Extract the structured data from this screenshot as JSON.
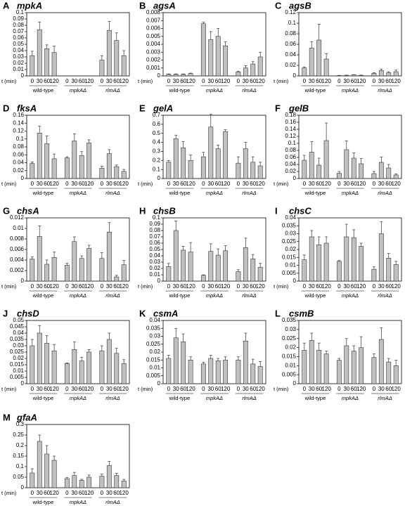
{
  "chart_data": [
    {
      "type": "bar",
      "panel": "A",
      "title": "mpkA",
      "x_label": "t (min)",
      "color": "#c0c0c0",
      "categories": [
        "0",
        "30",
        "60",
        "120",
        "0",
        "30",
        "60",
        "120",
        "0",
        "30",
        "60",
        "120"
      ],
      "groups": [
        "wild-type",
        "mpkAΔ",
        "rlmAΔ"
      ],
      "values": [
        0.032,
        0.073,
        0.043,
        0.037,
        0,
        0,
        0,
        0,
        0.025,
        0.072,
        0.056,
        0.032
      ],
      "errors": [
        0.007,
        0.012,
        0.006,
        0.01,
        0,
        0,
        0,
        0,
        0.007,
        0.014,
        0.012,
        0.008
      ],
      "ylim": [
        0,
        0.1
      ],
      "yticks": [
        0,
        0.01,
        0.02,
        0.03,
        0.04,
        0.05,
        0.06,
        0.07,
        0.08,
        0.09,
        0.1
      ]
    },
    {
      "type": "bar",
      "panel": "B",
      "title": "agsA",
      "x_label": "t (min)",
      "color": "#c0c0c0",
      "categories": [
        "0",
        "30",
        "60",
        "120",
        "0",
        "30",
        "60",
        "120",
        "0",
        "30",
        "60",
        "120"
      ],
      "groups": [
        "wild-type",
        "mpkAΔ",
        "rlmAΔ"
      ],
      "values": [
        0.0002,
        0.0002,
        0.0002,
        0.0003,
        0.0066,
        0.0046,
        0.005,
        0.0038,
        0.0005,
        0.001,
        0.0015,
        0.0024
      ],
      "errors": [
        5e-05,
        5e-05,
        5e-05,
        5e-05,
        0.0002,
        0.001,
        0.001,
        0.0005,
        0.0001,
        0.0003,
        0.0003,
        0.0006
      ],
      "ylim": [
        0,
        0.008
      ],
      "yticks": [
        0,
        0.001,
        0.002,
        0.003,
        0.004,
        0.005,
        0.006,
        0.007,
        0.008
      ]
    },
    {
      "type": "bar",
      "panel": "C",
      "title": "agsB",
      "x_label": "t (min)",
      "color": "#c0c0c0",
      "categories": [
        "0",
        "30",
        "60",
        "120",
        "0",
        "30",
        "60",
        "120",
        "0",
        "30",
        "60",
        "120"
      ],
      "groups": [
        "wild-type",
        "mpkAΔ",
        "rlmAΔ"
      ],
      "values": [
        0.015,
        0.053,
        0.068,
        0.032,
        0.0005,
        0.001,
        0.002,
        0.001,
        0.005,
        0.01,
        0.006,
        0.008
      ],
      "errors": [
        0.002,
        0.012,
        0.03,
        0.01,
        0.0005,
        0.0005,
        0.0005,
        0.0005,
        0.001,
        0.003,
        0.002,
        0.003
      ],
      "ylim": [
        0,
        0.12
      ],
      "yticks": [
        0,
        0.02,
        0.04,
        0.06,
        0.08,
        0.1,
        0.12
      ]
    },
    {
      "type": "bar",
      "panel": "D",
      "title": "fksA",
      "x_label": "t (min)",
      "color": "#c0c0c0",
      "categories": [
        "0",
        "30",
        "60",
        "120",
        "0",
        "30",
        "60",
        "120",
        "0",
        "30",
        "60",
        "120"
      ],
      "groups": [
        "wild-type",
        "mpkAΔ",
        "rlmAΔ"
      ],
      "values": [
        0.038,
        0.115,
        0.088,
        0.05,
        0.052,
        0.095,
        0.058,
        0.09,
        0.026,
        0.063,
        0.03,
        0.018
      ],
      "errors": [
        0.004,
        0.017,
        0.02,
        0.012,
        0.003,
        0.018,
        0.01,
        0.008,
        0.005,
        0.01,
        0.004,
        0.005
      ],
      "ylim": [
        0,
        0.16
      ],
      "yticks": [
        0,
        0.02,
        0.04,
        0.06,
        0.08,
        0.1,
        0.12,
        0.14,
        0.16
      ]
    },
    {
      "type": "bar",
      "panel": "E",
      "title": "gelA",
      "x_label": "t (min)",
      "color": "#c0c0c0",
      "categories": [
        "0",
        "30",
        "60",
        "120",
        "0",
        "30",
        "60",
        "120",
        "0",
        "30",
        "60",
        "120"
      ],
      "groups": [
        "wild-type",
        "mpkAΔ",
        "rlmAΔ"
      ],
      "values": [
        0.18,
        0.44,
        0.34,
        0.2,
        0.24,
        0.57,
        0.33,
        0.52,
        0.17,
        0.33,
        0.18,
        0.14
      ],
      "errors": [
        0.02,
        0.04,
        0.07,
        0.06,
        0.05,
        0.14,
        0.04,
        0.02,
        0.07,
        0.07,
        0.06,
        0.04
      ],
      "ylim": [
        0,
        0.7
      ],
      "yticks": [
        0,
        0.1,
        0.2,
        0.3,
        0.4,
        0.5,
        0.6,
        0.7
      ]
    },
    {
      "type": "bar",
      "panel": "F",
      "title": "gelB",
      "x_label": "t (min)",
      "color": "#c0c0c0",
      "categories": [
        "0",
        "30",
        "60",
        "120",
        "0",
        "30",
        "60",
        "120",
        "0",
        "30",
        "60",
        "120"
      ],
      "groups": [
        "wild-type",
        "mpkAΔ",
        "rlmAΔ"
      ],
      "values": [
        0.052,
        0.075,
        0.038,
        0.108,
        0.015,
        0.082,
        0.058,
        0.042,
        0.014,
        0.046,
        0.03,
        0.01
      ],
      "errors": [
        0.014,
        0.03,
        0.02,
        0.05,
        0.005,
        0.025,
        0.015,
        0.015,
        0.006,
        0.015,
        0.01,
        0.003
      ],
      "ylim": [
        0,
        0.18
      ],
      "yticks": [
        0,
        0.02,
        0.04,
        0.06,
        0.08,
        0.1,
        0.12,
        0.14,
        0.16,
        0.18
      ]
    },
    {
      "type": "bar",
      "panel": "G",
      "title": "chsA",
      "x_label": "t (min)",
      "color": "#c0c0c0",
      "categories": [
        "0",
        "30",
        "60",
        "120",
        "0",
        "30",
        "60",
        "120",
        "0",
        "30",
        "60",
        "120"
      ],
      "groups": [
        "wild-type",
        "mpkAΔ",
        "rlmAΔ"
      ],
      "values": [
        0.0042,
        0.0085,
        0.0032,
        0.0045,
        0.003,
        0.0075,
        0.0043,
        0.0062,
        0.0043,
        0.0093,
        0.0008,
        0.0031
      ],
      "errors": [
        0.0004,
        0.002,
        0.0008,
        0.001,
        0.0004,
        0.0009,
        0.0005,
        0.0006,
        0.0011,
        0.0018,
        0.0003,
        0.0008
      ],
      "ylim": [
        0,
        0.012
      ],
      "yticks": [
        0,
        0.002,
        0.004,
        0.006,
        0.008,
        0.01,
        0.012
      ]
    },
    {
      "type": "bar",
      "panel": "H",
      "title": "chsB",
      "x_label": "t (min)",
      "color": "#c0c0c0",
      "categories": [
        "0",
        "30",
        "60",
        "120",
        "0",
        "30",
        "60",
        "120",
        "0",
        "30",
        "60",
        "120"
      ],
      "groups": [
        "wild-type",
        "mpkAΔ",
        "rlmAΔ"
      ],
      "values": [
        0.023,
        0.08,
        0.049,
        0.046,
        0.009,
        0.047,
        0.041,
        0.048,
        0.015,
        0.053,
        0.035,
        0.022
      ],
      "errors": [
        0.005,
        0.015,
        0.006,
        0.015,
        0.001,
        0.012,
        0.01,
        0.008,
        0.003,
        0.015,
        0.007,
        0.006
      ],
      "ylim": [
        0,
        0.1
      ],
      "yticks": [
        0,
        0.01,
        0.02,
        0.03,
        0.04,
        0.05,
        0.06,
        0.07,
        0.08,
        0.09,
        0.1
      ]
    },
    {
      "type": "bar",
      "panel": "I",
      "title": "chsC",
      "x_label": "t (min)",
      "color": "#c0c0c0",
      "categories": [
        "0",
        "30",
        "60",
        "120",
        "0",
        "30",
        "60",
        "120",
        "0",
        "30",
        "60",
        "120"
      ],
      "groups": [
        "wild-type",
        "mpkAΔ",
        "rlmAΔ"
      ],
      "values": [
        0.0135,
        0.028,
        0.023,
        0.024,
        0.0125,
        0.028,
        0.0275,
        0.022,
        0.0075,
        0.03,
        0.0145,
        0.0105
      ],
      "errors": [
        0.003,
        0.004,
        0.005,
        0.004,
        0.0005,
        0.008,
        0.005,
        0.002,
        0.0015,
        0.0075,
        0.003,
        0.002
      ],
      "ylim": [
        0,
        0.04
      ],
      "yticks": [
        0,
        0.005,
        0.01,
        0.015,
        0.02,
        0.025,
        0.03,
        0.035,
        0.04
      ]
    },
    {
      "type": "bar",
      "panel": "J",
      "title": "chsD",
      "x_label": "t (min)",
      "color": "#c0c0c0",
      "categories": [
        "0",
        "30",
        "60",
        "120",
        "0",
        "30",
        "60",
        "120",
        "0",
        "30",
        "60",
        "120"
      ],
      "groups": [
        "wild-type",
        "mpkAΔ",
        "rlmAΔ"
      ],
      "values": [
        0.03,
        0.04,
        0.032,
        0.026,
        0.016,
        0.027,
        0.018,
        0.025,
        0.026,
        0.035,
        0.024,
        0.016
      ],
      "errors": [
        0.005,
        0.006,
        0.006,
        0.005,
        0.0005,
        0.006,
        0.003,
        0.002,
        0.004,
        0.005,
        0.004,
        0.003
      ],
      "ylim": [
        0,
        0.05
      ],
      "yticks": [
        0,
        0.005,
        0.01,
        0.015,
        0.02,
        0.025,
        0.03,
        0.035,
        0.04,
        0.045,
        0.05
      ]
    },
    {
      "type": "bar",
      "panel": "K",
      "title": "csmA",
      "x_label": "t (min)",
      "color": "#c0c0c0",
      "categories": [
        "0",
        "30",
        "60",
        "120",
        "0",
        "30",
        "60",
        "120",
        "0",
        "30",
        "60",
        "120"
      ],
      "groups": [
        "wild-type",
        "mpkAΔ",
        "rlmAΔ"
      ],
      "values": [
        0.016,
        0.029,
        0.0265,
        0.015,
        0.0125,
        0.016,
        0.0145,
        0.015,
        0.015,
        0.027,
        0.0125,
        0.011
      ],
      "errors": [
        0.002,
        0.006,
        0.005,
        0.002,
        0.001,
        0.002,
        0.0015,
        0.002,
        0.002,
        0.005,
        0.003,
        0.003
      ],
      "ylim": [
        0,
        0.04
      ],
      "yticks": [
        0,
        0.005,
        0.01,
        0.015,
        0.02,
        0.025,
        0.03,
        0.035,
        0.04
      ]
    },
    {
      "type": "bar",
      "panel": "L",
      "title": "csmB",
      "x_label": "t (min)",
      "color": "#c0c0c0",
      "categories": [
        "0",
        "30",
        "60",
        "120",
        "0",
        "30",
        "60",
        "120",
        "0",
        "30",
        "60",
        "120"
      ],
      "groups": [
        "wild-type",
        "mpkAΔ",
        "rlmAΔ"
      ],
      "values": [
        0.0185,
        0.024,
        0.0185,
        0.0165,
        0.013,
        0.021,
        0.018,
        0.02,
        0.0145,
        0.0245,
        0.012,
        0.01
      ],
      "errors": [
        0.004,
        0.004,
        0.004,
        0.0015,
        0.001,
        0.004,
        0.003,
        0.006,
        0.002,
        0.0065,
        0.002,
        0.003
      ],
      "ylim": [
        0,
        0.035
      ],
      "yticks": [
        0,
        0.005,
        0.01,
        0.015,
        0.02,
        0.025,
        0.03,
        0.035
      ]
    },
    {
      "type": "bar",
      "panel": "M",
      "title": "gfaA",
      "x_label": "t (min)",
      "color": "#c0c0c0",
      "categories": [
        "0",
        "30",
        "60",
        "120",
        "0",
        "30",
        "60",
        "120",
        "0",
        "30",
        "60",
        "120"
      ],
      "groups": [
        "wild-type",
        "mpkAΔ",
        "rlmAΔ"
      ],
      "values": [
        0.07,
        0.22,
        0.16,
        0.13,
        0.043,
        0.058,
        0.035,
        0.05,
        0.055,
        0.105,
        0.058,
        0.032
      ],
      "errors": [
        0.02,
        0.03,
        0.04,
        0.02,
        0.005,
        0.015,
        0.005,
        0.01,
        0.01,
        0.02,
        0.01,
        0.008
      ],
      "ylim": [
        0,
        0.3
      ],
      "yticks": [
        0,
        0.05,
        0.1,
        0.15,
        0.2,
        0.25,
        0.3
      ]
    }
  ]
}
